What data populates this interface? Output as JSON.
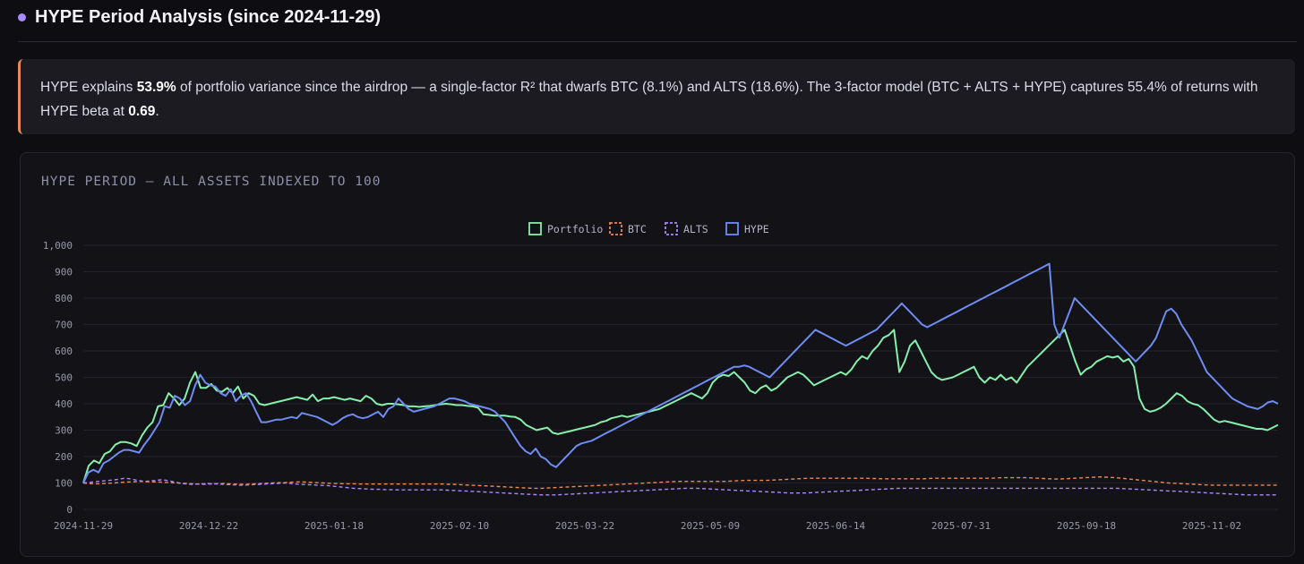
{
  "header": {
    "title": "HYPE Period Analysis (since 2024-11-29)"
  },
  "callout": {
    "t1": "HYPE explains ",
    "b1": "53.9%",
    "t2": " of portfolio variance since the airdrop — a single-factor R² that dwarfs BTC (8.1%) and ALTS (18.6%). The 3-factor model (BTC + ALTS + HYPE) captures 55.4% of returns with HYPE beta at ",
    "b2": "0.69",
    "t3": "."
  },
  "colors": {
    "portfolio": "#86efac",
    "btc": "#e9895a",
    "alts": "#a78bfa",
    "hype": "#6f8cf2",
    "grid": "#22222a"
  },
  "chart_data": {
    "type": "line",
    "title": "HYPE PERIOD — ALL ASSETS INDEXED TO 100",
    "x_ticks": [
      "2024-11-29",
      "2024-12-22",
      "2025-01-18",
      "2025-02-10",
      "2025-03-22",
      "2025-05-09",
      "2025-06-14",
      "2025-07-31",
      "2025-09-18",
      "2025-11-02"
    ],
    "y_ticks": [
      "0",
      "100",
      "200",
      "300",
      "400",
      "500",
      "600",
      "700",
      "800",
      "900",
      "1,000"
    ],
    "ylim": [
      0,
      1000
    ],
    "grid": true,
    "legend_position": "top-center",
    "series": [
      {
        "name": "Portfolio",
        "style": "solid",
        "values": [
          100,
          165,
          185,
          175,
          210,
          220,
          245,
          255,
          255,
          250,
          240,
          280,
          310,
          330,
          390,
          395,
          440,
          420,
          395,
          420,
          480,
          520,
          460,
          460,
          475,
          450,
          445,
          460,
          440,
          465,
          420,
          440,
          430,
          400,
          395,
          400,
          405,
          410,
          415,
          420,
          425,
          420,
          415,
          435,
          410,
          420,
          420,
          425,
          420,
          415,
          420,
          415,
          410,
          430,
          420,
          400,
          395,
          400,
          400,
          398,
          395,
          390,
          390,
          388,
          390,
          392,
          395,
          398,
          400,
          398,
          395,
          395,
          392,
          390,
          385,
          360,
          358,
          355,
          355,
          355,
          352,
          350,
          340,
          320,
          310,
          300,
          305,
          310,
          290,
          285,
          290,
          295,
          300,
          305,
          310,
          315,
          320,
          330,
          335,
          345,
          350,
          355,
          350,
          355,
          360,
          365,
          370,
          375,
          380,
          390,
          400,
          410,
          420,
          430,
          440,
          430,
          420,
          440,
          480,
          500,
          510,
          505,
          520,
          500,
          480,
          450,
          440,
          460,
          470,
          450,
          460,
          480,
          500,
          510,
          520,
          510,
          490,
          470,
          480,
          490,
          500,
          510,
          520,
          510,
          530,
          560,
          580,
          570,
          600,
          620,
          650,
          660,
          680,
          520,
          560,
          620,
          640,
          600,
          560,
          520,
          500,
          490,
          495,
          500,
          510,
          520,
          530,
          540,
          500,
          480,
          500,
          490,
          510,
          490,
          500,
          480,
          510,
          540,
          560,
          580,
          600,
          620,
          640,
          660,
          680,
          620,
          560,
          510,
          530,
          540,
          560,
          570,
          580,
          575,
          580,
          560,
          570,
          540,
          420,
          380,
          370,
          375,
          385,
          400,
          420,
          440,
          430,
          410,
          400,
          395,
          380,
          360,
          340,
          330,
          335,
          330,
          325,
          320,
          315,
          310,
          305,
          305,
          300,
          310,
          320
        ]
      },
      {
        "name": "BTC",
        "style": "dashed",
        "values": [
          100,
          98,
          97,
          97,
          98,
          99,
          100,
          102,
          103,
          104,
          105,
          106,
          105,
          104,
          104,
          103,
          102,
          101,
          100,
          99,
          98,
          97,
          96,
          95,
          96,
          97,
          98,
          98,
          97,
          96,
          95,
          95,
          96,
          97,
          98,
          99,
          100,
          101,
          101,
          102,
          103,
          104,
          104,
          103,
          102,
          101,
          100,
          99,
          98,
          98,
          97,
          97,
          97,
          96,
          96,
          96,
          96,
          96,
          96,
          96,
          96,
          96,
          96,
          96,
          96,
          96,
          96,
          96,
          96,
          96,
          95,
          95,
          94,
          93,
          92,
          91,
          90,
          89,
          88,
          87,
          86,
          85,
          84,
          83,
          82,
          81,
          80,
          80,
          80,
          81,
          82,
          83,
          84,
          85,
          86,
          87,
          88,
          89,
          90,
          91,
          92,
          93,
          94,
          95,
          96,
          97,
          98,
          99,
          100,
          101,
          102,
          103,
          104,
          105,
          106,
          106,
          106,
          106,
          106,
          106,
          106,
          106,
          106,
          106,
          107,
          108,
          109,
          110,
          110,
          110,
          110,
          110,
          111,
          112,
          113,
          114,
          115,
          116,
          117,
          118,
          118,
          118,
          118,
          118,
          118,
          118,
          118,
          118,
          118,
          118,
          118,
          117,
          117,
          116,
          116,
          116,
          116,
          116,
          116,
          116,
          116,
          116,
          117,
          118,
          118,
          118,
          118,
          118,
          118,
          118,
          118,
          118,
          118,
          118,
          118,
          119,
          120,
          120,
          120,
          120,
          120,
          120,
          119,
          118,
          117,
          116,
          115,
          115,
          116,
          117,
          118,
          119,
          120,
          121,
          122,
          123,
          122,
          121,
          120,
          118,
          116,
          114,
          112,
          110,
          108,
          106,
          104,
          102,
          100,
          99,
          98,
          97,
          96,
          95,
          94,
          93,
          92,
          92,
          92,
          92,
          92,
          92,
          92,
          92,
          92,
          92,
          92,
          92,
          92,
          92
        ]
      },
      {
        "name": "ALTS",
        "style": "dashed",
        "values": [
          100,
          102,
          104,
          106,
          108,
          110,
          112,
          115,
          118,
          116,
          112,
          108,
          106,
          108,
          110,
          112,
          110,
          106,
          102,
          98,
          96,
          95,
          96,
          97,
          98,
          97,
          96,
          95,
          94,
          93,
          92,
          92,
          93,
          94,
          95,
          96,
          97,
          98,
          99,
          100,
          98,
          96,
          95,
          94,
          93,
          92,
          91,
          90,
          88,
          86,
          84,
          82,
          80,
          79,
          78,
          77,
          76,
          76,
          75,
          75,
          74,
          74,
          74,
          74,
          74,
          74,
          74,
          74,
          74,
          74,
          73,
          72,
          71,
          70,
          69,
          68,
          67,
          66,
          65,
          64,
          63,
          62,
          61,
          60,
          59,
          58,
          57,
          56,
          55,
          55,
          55,
          55,
          56,
          57,
          58,
          59,
          60,
          61,
          62,
          63,
          64,
          65,
          66,
          67,
          68,
          69,
          70,
          71,
          72,
          73,
          74,
          75,
          76,
          77,
          78,
          79,
          80,
          80,
          80,
          79,
          78,
          77,
          76,
          75,
          74,
          73,
          72,
          71,
          70,
          69,
          68,
          67,
          66,
          65,
          64,
          63,
          62,
          62,
          62,
          62,
          63,
          64,
          65,
          66,
          67,
          68,
          69,
          70,
          71,
          72,
          73,
          74,
          75,
          76,
          77,
          78,
          79,
          80,
          80,
          80,
          80,
          80,
          80,
          80,
          80,
          80,
          80,
          80,
          80,
          80,
          80,
          80,
          80,
          80,
          80,
          80,
          80,
          80,
          80,
          80,
          80,
          80,
          80,
          80,
          80,
          80,
          80,
          80,
          80,
          80,
          80,
          80,
          80,
          80,
          80,
          80,
          80,
          80,
          80,
          80,
          79,
          78,
          77,
          76,
          75,
          74,
          73,
          72,
          71,
          70,
          69,
          68,
          67,
          66,
          65,
          64,
          63,
          62,
          61,
          60,
          59,
          58,
          57,
          56,
          55,
          55,
          55,
          55,
          55,
          55,
          55
        ]
      },
      {
        "name": "HYPE",
        "style": "solid",
        "values": [
          100,
          140,
          150,
          140,
          175,
          185,
          200,
          215,
          225,
          225,
          220,
          215,
          245,
          270,
          300,
          330,
          390,
          385,
          430,
          420,
          395,
          410,
          470,
          510,
          480,
          470,
          465,
          440,
          430,
          455,
          410,
          430,
          440,
          410,
          370,
          330,
          330,
          335,
          340,
          340,
          345,
          350,
          345,
          365,
          360,
          355,
          350,
          340,
          330,
          320,
          330,
          345,
          355,
          360,
          350,
          345,
          350,
          360,
          370,
          350,
          380,
          390,
          420,
          400,
          380,
          370,
          375,
          380,
          385,
          390,
          400,
          410,
          420,
          420,
          415,
          410,
          400,
          395,
          390,
          385,
          380,
          370,
          350,
          330,
          300,
          270,
          240,
          220,
          210,
          230,
          200,
          190,
          170,
          160,
          180,
          200,
          220,
          240,
          250,
          255,
          260,
          270,
          280,
          290,
          300,
          310,
          320,
          330,
          340,
          350,
          360,
          370,
          380,
          390,
          400,
          410,
          420,
          430,
          440,
          450,
          460,
          470,
          480,
          490,
          500,
          510,
          520,
          530,
          540,
          540,
          545,
          540,
          530,
          520,
          510,
          500,
          520,
          540,
          560,
          580,
          600,
          620,
          640,
          660,
          680,
          670,
          660,
          650,
          640,
          630,
          620,
          630,
          640,
          650,
          660,
          670,
          680,
          700,
          720,
          740,
          760,
          780,
          760,
          740,
          720,
          700,
          690,
          700,
          710,
          720,
          730,
          740,
          750,
          760,
          770,
          780,
          790,
          800,
          810,
          820,
          830,
          840,
          850,
          860,
          870,
          880,
          890,
          900,
          910,
          920,
          930,
          700,
          650,
          700,
          750,
          800,
          780,
          760,
          740,
          720,
          700,
          680,
          660,
          640,
          620,
          600,
          580,
          560,
          580,
          600,
          620,
          650,
          700,
          750,
          760,
          740,
          700,
          670,
          640,
          600,
          560,
          520,
          500,
          480,
          460,
          440,
          420,
          410,
          400,
          390,
          385,
          380,
          390,
          405,
          410,
          400
        ]
      }
    ]
  }
}
